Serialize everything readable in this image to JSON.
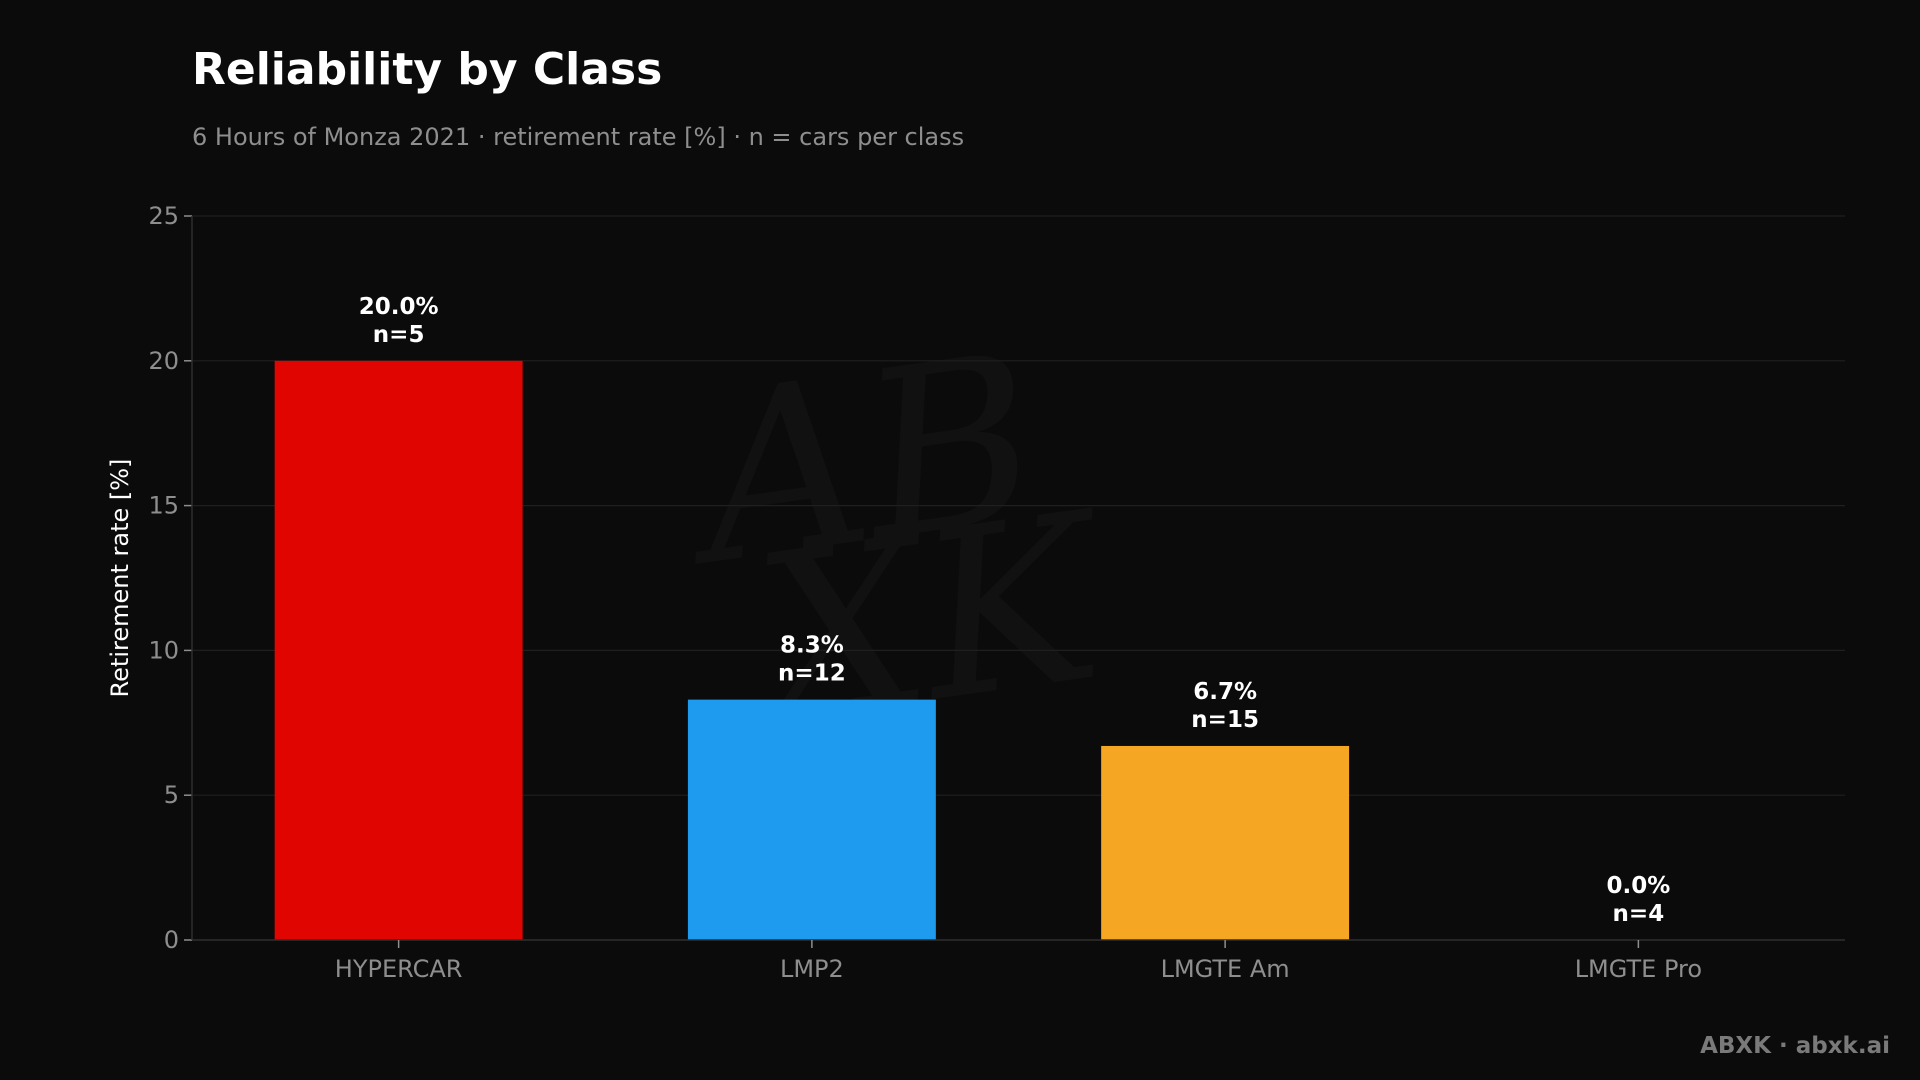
{
  "title": "Reliability by Class",
  "subtitle": "6 Hours of Monza 2021 · retirement rate [%] · n = cars per class",
  "footer": "ABXK · abxk.ai",
  "watermark": {
    "line1": "AB",
    "line2": "XK"
  },
  "chart_data": {
    "type": "bar",
    "title": "Reliability by Class",
    "subtitle": "6 Hours of Monza 2021 · retirement rate [%] · n = cars per class",
    "xlabel": "",
    "ylabel": "Retirement rate [%]",
    "ylim": [
      0,
      25
    ],
    "yticks": [
      0,
      5,
      10,
      15,
      20,
      25
    ],
    "grid": true,
    "categories": [
      "HYPERCAR",
      "LMP2",
      "LMGTE Am",
      "LMGTE Pro"
    ],
    "values": [
      20.0,
      8.3,
      6.7,
      0.0
    ],
    "counts": [
      5,
      12,
      15,
      4
    ],
    "value_labels": [
      "20.0%",
      "8.3%",
      "6.7%",
      "0.0%"
    ],
    "count_labels": [
      "n=5",
      "n=12",
      "n=15",
      "n=4"
    ],
    "colors": [
      "#e00500",
      "#1e9bef",
      "#f5a623",
      "#7a7a7a"
    ]
  }
}
